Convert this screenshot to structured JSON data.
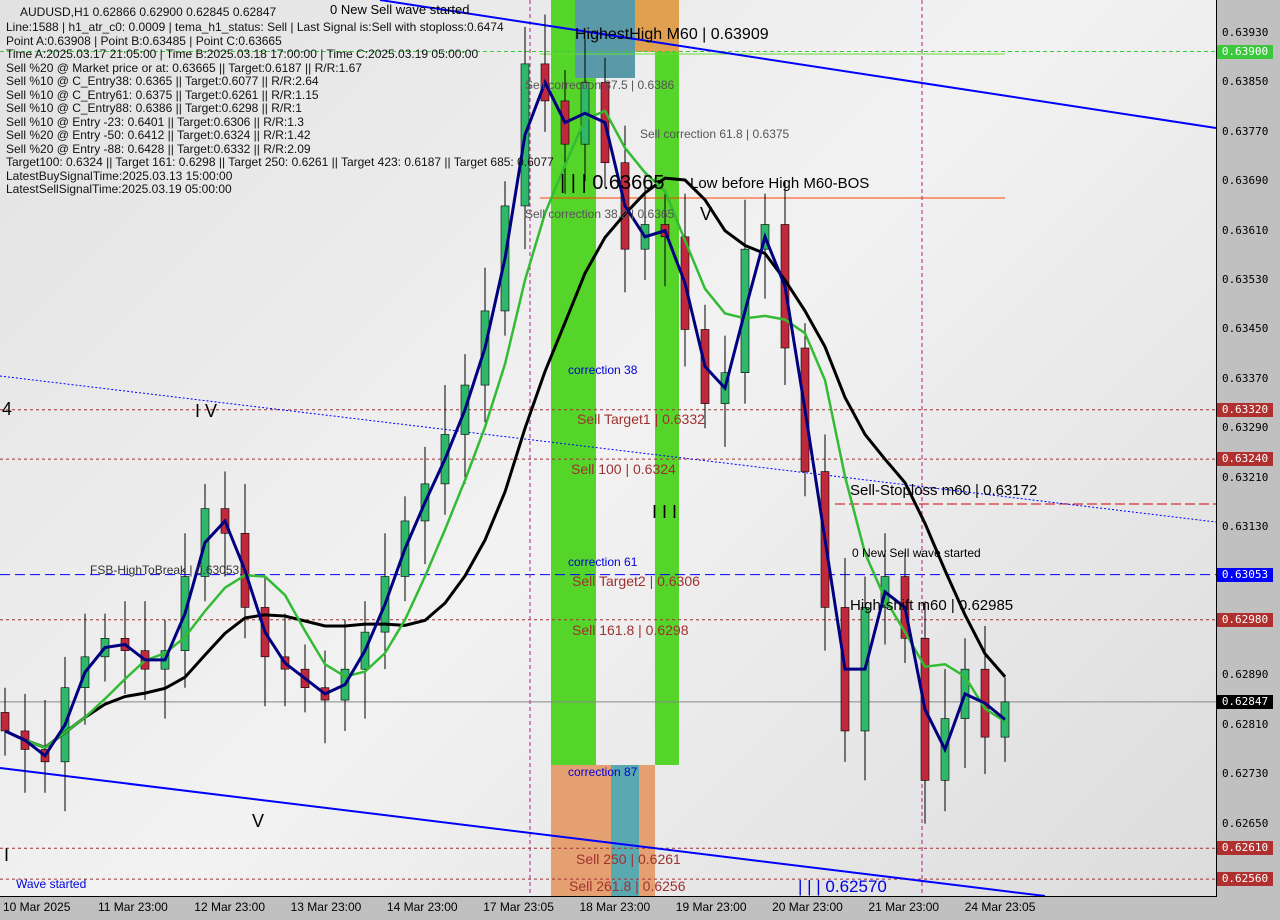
{
  "header": {
    "title": "AUDUSD,H1  0.62866 0.62900 0.62845 0.62847",
    "lines": [
      "Line:1588 | h1_atr_c0: 0.0009 | tema_h1_status: Sell | Last Signal is:Sell with stoploss:0.6474",
      "Point A:0.63908 | Point B:0.63485 | Point C:0.63665",
      "Time A:2025.03.17 21:05:00 | Time B:2025.03.18 17:00:00 | Time C:2025.03.19 05:00:00",
      "Sell %20 @ Market price or at: 0.63665 || Target:0.6187 || R/R:1.67",
      "Sell %10 @ C_Entry38: 0.6365 || Target:0.6077 || R/R:2.64",
      "Sell %10 @ C_Entry61: 0.6375 || Target:0.6261 || R/R:1.15",
      "Sell %10 @ C_Entry88: 0.6386 || Target:0.6298 || R/R:1",
      "Sell %10 @ Entry -23: 0.6401 || Target:0.6306 || R/R:1.3",
      "Sell %20 @ Entry -50: 0.6412 || Target:0.6324 || R/R:1.42",
      "Sell %20 @ Entry -88: 0.6428 || Target:0.6332 || R/R:2.09",
      "Target100: 0.6324 || Target 161: 0.6298 || Target 250: 0.6261 || Target 423: 0.6187 || Target 685: 0.6077",
      "LatestBuySignalTime:2025.03.13 15:00:00",
      "LatestSellSignalTime:2025.03.19 05:00:00"
    ]
  },
  "annotations": {
    "new_sell_top": "0 New Sell wave started",
    "highest_high": "HighestHigh   M60 | 0.63909",
    "sell_corr_875": "Sell correction 87.5 | 0.6386",
    "sell_corr_618": "Sell correction 61.8 | 0.6375",
    "sell_corr_382": "Sell correction 38.2 | 0.6365",
    "lll": "| | | 0.63665",
    "low_before_high": "Low before High   M60-BOS",
    "v_mark": "V",
    "iv_mark": "I V",
    "iii_mark": "I I I",
    "v_low": "V",
    "i_mark": "I",
    "four_mark": "4",
    "correction_38": "correction 38",
    "correction_61": "correction 61",
    "correction_87": "correction 87",
    "sell_target1": "Sell Target1 | 0.6332",
    "sell_100": "Sell 100 | 0.6324",
    "sell_stoploss": "Sell-Stoploss m60 | 0.63172",
    "new_sell_wave": "0 New Sell wave started",
    "fsb": "FSB-HighToBreak | 0.63053",
    "sell_target2": "Sell Target2 | 0.6306",
    "high_shift": "High-shift m60 | 0.62985",
    "sell_1618": "Sell 161.8 | 0.6298",
    "sell_250": "Sell  250 | 0.6261",
    "sell_2618": "Sell 261.8 | 0.6256",
    "lll_low": "| | | 0.62570",
    "wave_started": "Wave started"
  },
  "price_axis": {
    "ticks": [
      "0.63930",
      "0.63850",
      "0.63770",
      "0.63690",
      "0.63610",
      "0.63530",
      "0.63450",
      "0.63370",
      "0.63290",
      "0.63210",
      "0.63130",
      "0.62890",
      "0.62810",
      "0.62730",
      "0.62650"
    ],
    "tags": [
      {
        "label": "0.63900",
        "color": "#3cc83c"
      },
      {
        "label": "0.63320",
        "color": "#b03030"
      },
      {
        "label": "0.63240",
        "color": "#b03030"
      },
      {
        "label": "0.63053",
        "color": "#0000ff"
      },
      {
        "label": "0.62980",
        "color": "#b03030"
      },
      {
        "label": "0.62847",
        "color": "#000000"
      },
      {
        "label": "0.62610",
        "color": "#b03030"
      },
      {
        "label": "0.62560",
        "color": "#b03030"
      }
    ]
  },
  "time_axis": [
    "10 Mar 2025",
    "11 Mar 23:00",
    "12 Mar 23:00",
    "13 Mar 23:00",
    "14 Mar 23:00",
    "17 Mar 23:05",
    "18 Mar 23:00",
    "19 Mar 23:00",
    "20 Mar 23:00",
    "21 Mar 23:00",
    "24 Mar 23:05"
  ],
  "chart_data": {
    "type": "candlestick",
    "symbol": "AUDUSD,H1",
    "ylim": [
      0.6253,
      0.6399
    ],
    "closes": [
      0.628,
      0.6277,
      0.6275,
      0.6287,
      0.6292,
      0.6295,
      0.6293,
      0.629,
      0.6293,
      0.6305,
      0.6316,
      0.6312,
      0.63,
      0.6292,
      0.629,
      0.6287,
      0.6285,
      0.629,
      0.6296,
      0.6305,
      0.6314,
      0.632,
      0.6328,
      0.6336,
      0.6348,
      0.6365,
      0.6388,
      0.6382,
      0.6375,
      0.6385,
      0.6372,
      0.6358,
      0.6362,
      0.636,
      0.6345,
      0.6333,
      0.6338,
      0.6358,
      0.6362,
      0.6342,
      0.6322,
      0.63,
      0.628,
      0.63,
      0.6305,
      0.6295,
      0.6272,
      0.6282,
      0.629,
      0.6279,
      0.62847
    ],
    "colors": {
      "bull": "#2fb86a",
      "bear": "#c0283c",
      "ma_long": "#000000",
      "ma_mid": "#33bb33",
      "ma_fast": "#000080",
      "channel": "#0000ff"
    }
  }
}
